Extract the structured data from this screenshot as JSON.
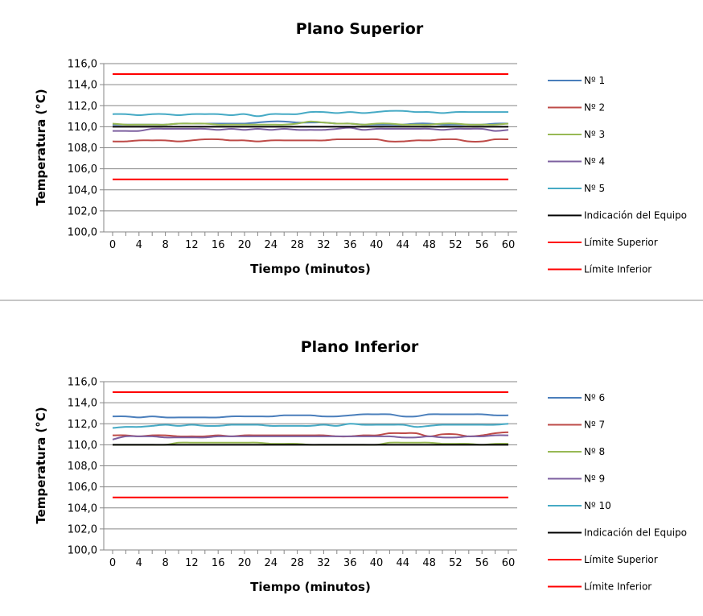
{
  "chart_data": [
    {
      "type": "line",
      "title": "Plano Superior",
      "xlabel": "Tiempo (minutos)",
      "ylabel": "Temperatura (°C)",
      "ylim": [
        100,
        116
      ],
      "yticks": [
        "100,0",
        "102,0",
        "104,0",
        "106,0",
        "108,0",
        "110,0",
        "112,0",
        "114,0",
        "116,0"
      ],
      "xticks": [
        "0",
        "4",
        "8",
        "12",
        "16",
        "20",
        "24",
        "28",
        "32",
        "36",
        "40",
        "44",
        "48",
        "52",
        "56",
        "60"
      ],
      "grid": true,
      "legend": "right",
      "x": [
        0,
        2,
        4,
        6,
        8,
        10,
        12,
        14,
        16,
        18,
        20,
        22,
        24,
        26,
        28,
        30,
        32,
        34,
        36,
        38,
        40,
        42,
        44,
        46,
        48,
        50,
        52,
        54,
        56,
        58,
        60
      ],
      "series": [
        {
          "name": "Nº 1",
          "color": "#4a7ebb",
          "values": [
            110.2,
            110.2,
            110.2,
            110.2,
            110.2,
            110.3,
            110.3,
            110.3,
            110.3,
            110.3,
            110.3,
            110.4,
            110.5,
            110.5,
            110.4,
            110.4,
            110.4,
            110.3,
            110.3,
            110.2,
            110.2,
            110.2,
            110.2,
            110.3,
            110.3,
            110.2,
            110.2,
            110.2,
            110.2,
            110.3,
            110.3
          ]
        },
        {
          "name": "Nº 2",
          "color": "#be4b48",
          "values": [
            108.6,
            108.6,
            108.7,
            108.7,
            108.7,
            108.6,
            108.7,
            108.8,
            108.8,
            108.7,
            108.7,
            108.6,
            108.7,
            108.7,
            108.7,
            108.7,
            108.7,
            108.8,
            108.8,
            108.8,
            108.8,
            108.6,
            108.6,
            108.7,
            108.7,
            108.8,
            108.8,
            108.6,
            108.6,
            108.8,
            108.8
          ]
        },
        {
          "name": "Nº 3",
          "color": "#98b954",
          "values": [
            110.3,
            110.2,
            110.2,
            110.2,
            110.2,
            110.3,
            110.3,
            110.3,
            110.2,
            110.2,
            110.2,
            110.2,
            110.2,
            110.2,
            110.3,
            110.5,
            110.4,
            110.3,
            110.3,
            110.2,
            110.3,
            110.3,
            110.2,
            110.2,
            110.2,
            110.3,
            110.3,
            110.2,
            110.2,
            110.2,
            110.3
          ]
        },
        {
          "name": "Nº 4",
          "color": "#7d60a0",
          "values": [
            109.6,
            109.6,
            109.6,
            109.8,
            109.8,
            109.8,
            109.8,
            109.8,
            109.7,
            109.8,
            109.7,
            109.8,
            109.7,
            109.8,
            109.7,
            109.7,
            109.7,
            109.8,
            109.9,
            109.7,
            109.8,
            109.8,
            109.8,
            109.8,
            109.8,
            109.7,
            109.8,
            109.8,
            109.8,
            109.6,
            109.7
          ]
        },
        {
          "name": "Nº 5",
          "color": "#46aac5",
          "values": [
            111.2,
            111.2,
            111.1,
            111.2,
            111.2,
            111.1,
            111.2,
            111.2,
            111.2,
            111.1,
            111.2,
            111.0,
            111.2,
            111.2,
            111.2,
            111.4,
            111.4,
            111.3,
            111.4,
            111.3,
            111.4,
            111.5,
            111.5,
            111.4,
            111.4,
            111.3,
            111.4,
            111.4,
            111.4,
            111.4,
            111.4
          ]
        },
        {
          "name": "Indicación del Equipo",
          "color": "#000000",
          "values": [
            110.0,
            110.0,
            110.0,
            110.0,
            110.0,
            110.0,
            110.0,
            110.0,
            110.0,
            110.0,
            110.0,
            110.0,
            110.0,
            110.0,
            110.0,
            110.0,
            110.0,
            110.0,
            110.0,
            110.0,
            110.0,
            110.0,
            110.0,
            110.0,
            110.0,
            110.0,
            110.0,
            110.0,
            110.0,
            110.0,
            110.0
          ]
        },
        {
          "name": "Límite Superior",
          "color": "#ff0000",
          "values": [
            115.0,
            115.0,
            115.0,
            115.0,
            115.0,
            115.0,
            115.0,
            115.0,
            115.0,
            115.0,
            115.0,
            115.0,
            115.0,
            115.0,
            115.0,
            115.0,
            115.0,
            115.0,
            115.0,
            115.0,
            115.0,
            115.0,
            115.0,
            115.0,
            115.0,
            115.0,
            115.0,
            115.0,
            115.0,
            115.0,
            115.0
          ]
        },
        {
          "name": "Límite Inferior",
          "color": "#ff0000",
          "values": [
            105.0,
            105.0,
            105.0,
            105.0,
            105.0,
            105.0,
            105.0,
            105.0,
            105.0,
            105.0,
            105.0,
            105.0,
            105.0,
            105.0,
            105.0,
            105.0,
            105.0,
            105.0,
            105.0,
            105.0,
            105.0,
            105.0,
            105.0,
            105.0,
            105.0,
            105.0,
            105.0,
            105.0,
            105.0,
            105.0,
            105.0
          ]
        }
      ]
    },
    {
      "type": "line",
      "title": "Plano Inferior",
      "xlabel": "Tiempo (minutos)",
      "ylabel": "Temperatura (°C)",
      "ylim": [
        100,
        116
      ],
      "yticks": [
        "100,0",
        "102,0",
        "104,0",
        "106,0",
        "108,0",
        "110,0",
        "112,0",
        "114,0",
        "116,0"
      ],
      "xticks": [
        "0",
        "4",
        "8",
        "12",
        "16",
        "20",
        "24",
        "28",
        "32",
        "36",
        "40",
        "44",
        "48",
        "52",
        "56",
        "60"
      ],
      "grid": true,
      "legend": "right",
      "x": [
        0,
        2,
        4,
        6,
        8,
        10,
        12,
        14,
        16,
        18,
        20,
        22,
        24,
        26,
        28,
        30,
        32,
        34,
        36,
        38,
        40,
        42,
        44,
        46,
        48,
        50,
        52,
        54,
        56,
        58,
        60
      ],
      "series": [
        {
          "name": "Nº 6",
          "color": "#4a7ebb",
          "values": [
            112.7,
            112.7,
            112.6,
            112.7,
            112.6,
            112.6,
            112.6,
            112.6,
            112.6,
            112.7,
            112.7,
            112.7,
            112.7,
            112.8,
            112.8,
            112.8,
            112.7,
            112.7,
            112.8,
            112.9,
            112.9,
            112.9,
            112.7,
            112.7,
            112.9,
            112.9,
            112.9,
            112.9,
            112.9,
            112.8,
            112.8
          ]
        },
        {
          "name": "Nº 7",
          "color": "#be4b48",
          "values": [
            110.9,
            110.9,
            110.8,
            110.9,
            110.9,
            110.8,
            110.8,
            110.8,
            110.9,
            110.8,
            110.9,
            110.9,
            110.9,
            110.9,
            110.9,
            110.9,
            110.9,
            110.8,
            110.8,
            110.9,
            110.9,
            111.1,
            111.1,
            111.1,
            110.8,
            111.0,
            111.0,
            110.8,
            110.9,
            111.1,
            111.2
          ]
        },
        {
          "name": "Nº 8",
          "color": "#98b954",
          "values": [
            110.0,
            110.0,
            110.0,
            110.0,
            110.0,
            110.2,
            110.2,
            110.2,
            110.2,
            110.2,
            110.2,
            110.2,
            110.1,
            110.1,
            110.1,
            110.0,
            110.0,
            110.0,
            110.0,
            110.0,
            110.0,
            110.2,
            110.2,
            110.2,
            110.2,
            110.1,
            110.1,
            110.1,
            110.0,
            110.1,
            110.1
          ]
        },
        {
          "name": "Nº 9",
          "color": "#7d60a0",
          "values": [
            110.5,
            110.8,
            110.8,
            110.8,
            110.7,
            110.7,
            110.7,
            110.7,
            110.8,
            110.8,
            110.8,
            110.8,
            110.8,
            110.8,
            110.8,
            110.8,
            110.8,
            110.8,
            110.8,
            110.8,
            110.8,
            110.8,
            110.7,
            110.7,
            110.8,
            110.7,
            110.7,
            110.8,
            110.8,
            110.9,
            110.9
          ]
        },
        {
          "name": "Nº 10",
          "color": "#46aac5",
          "values": [
            111.6,
            111.7,
            111.7,
            111.8,
            111.9,
            111.8,
            111.9,
            111.8,
            111.8,
            111.9,
            111.9,
            111.9,
            111.8,
            111.8,
            111.8,
            111.8,
            111.9,
            111.8,
            112.0,
            111.9,
            111.9,
            111.9,
            111.9,
            111.7,
            111.8,
            111.9,
            111.9,
            111.9,
            111.9,
            111.9,
            112.0
          ]
        },
        {
          "name": "Indicación del Equipo",
          "color": "#000000",
          "values": [
            110.0,
            110.0,
            110.0,
            110.0,
            110.0,
            110.0,
            110.0,
            110.0,
            110.0,
            110.0,
            110.0,
            110.0,
            110.0,
            110.0,
            110.0,
            110.0,
            110.0,
            110.0,
            110.0,
            110.0,
            110.0,
            110.0,
            110.0,
            110.0,
            110.0,
            110.0,
            110.0,
            110.0,
            110.0,
            110.0,
            110.0
          ]
        },
        {
          "name": "Límite Superior",
          "color": "#ff0000",
          "values": [
            115.0,
            115.0,
            115.0,
            115.0,
            115.0,
            115.0,
            115.0,
            115.0,
            115.0,
            115.0,
            115.0,
            115.0,
            115.0,
            115.0,
            115.0,
            115.0,
            115.0,
            115.0,
            115.0,
            115.0,
            115.0,
            115.0,
            115.0,
            115.0,
            115.0,
            115.0,
            115.0,
            115.0,
            115.0,
            115.0,
            115.0
          ]
        },
        {
          "name": "Límite Inferior",
          "color": "#ff0000",
          "values": [
            105.0,
            105.0,
            105.0,
            105.0,
            105.0,
            105.0,
            105.0,
            105.0,
            105.0,
            105.0,
            105.0,
            105.0,
            105.0,
            105.0,
            105.0,
            105.0,
            105.0,
            105.0,
            105.0,
            105.0,
            105.0,
            105.0,
            105.0,
            105.0,
            105.0,
            105.0,
            105.0,
            105.0,
            105.0,
            105.0,
            105.0
          ]
        }
      ]
    }
  ]
}
